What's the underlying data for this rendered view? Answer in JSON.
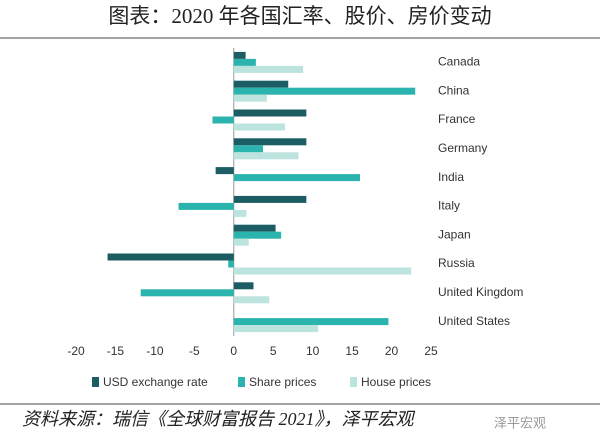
{
  "chart_data": {
    "type": "barh",
    "title": "图表：2020 年各国汇率、股价、房价变动",
    "source": "资料来源：瑞信《全球财富报告 2021》，泽平宏观",
    "watermark": "泽平宏观",
    "categories": [
      "Canada",
      "China",
      "France",
      "Germany",
      "India",
      "Italy",
      "Japan",
      "Russia",
      "United Kingdom",
      "United States"
    ],
    "series": [
      {
        "name": "USD exchange rate",
        "color": "#1b5d62",
        "values": [
          1.5,
          6.9,
          9.2,
          9.2,
          -2.3,
          9.2,
          5.3,
          -16,
          2.5,
          0
        ]
      },
      {
        "name": "Share prices",
        "color": "#2bb3ad",
        "values": [
          2.8,
          23,
          -2.7,
          3.7,
          16,
          -7,
          6,
          -0.7,
          -11.8,
          19.6
        ]
      },
      {
        "name": "House prices",
        "color": "#bde3df",
        "values": [
          8.8,
          4.2,
          6.5,
          8.2,
          0,
          1.6,
          1.9,
          22.5,
          4.5,
          10.7
        ]
      }
    ],
    "xlim": [
      -20,
      25
    ],
    "xticks": [
      -20,
      -15,
      -10,
      -5,
      0,
      5,
      10,
      15,
      20,
      25
    ],
    "grid": false,
    "legend": "bottom"
  }
}
